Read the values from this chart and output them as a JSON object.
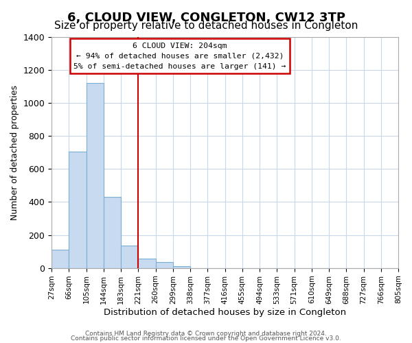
{
  "title": "6, CLOUD VIEW, CONGLETON, CW12 3TP",
  "subtitle": "Size of property relative to detached houses in Congleton",
  "xlabel": "Distribution of detached houses by size in Congleton",
  "ylabel": "Number of detached properties",
  "bar_values": [
    110,
    705,
    1120,
    430,
    135,
    58,
    35,
    10,
    0,
    0,
    0,
    0,
    0,
    0,
    0,
    0,
    0,
    0,
    0,
    0
  ],
  "bin_labels": [
    "27sqm",
    "66sqm",
    "105sqm",
    "144sqm",
    "183sqm",
    "221sqm",
    "260sqm",
    "299sqm",
    "338sqm",
    "377sqm",
    "416sqm",
    "455sqm",
    "494sqm",
    "533sqm",
    "571sqm",
    "610sqm",
    "649sqm",
    "688sqm",
    "727sqm",
    "766sqm",
    "805sqm"
  ],
  "bar_color": "#c8daf0",
  "bar_edge_color": "#7aafd4",
  "vline_pos": 4.5,
  "vline_color": "#cc0000",
  "annotation_box_edge_color": "#cc0000",
  "annotation_lines": [
    "6 CLOUD VIEW: 204sqm",
    "← 94% of detached houses are smaller (2,432)",
    "5% of semi-detached houses are larger (141) →"
  ],
  "ylim": [
    0,
    1400
  ],
  "yticks": [
    0,
    200,
    400,
    600,
    800,
    1000,
    1200,
    1400
  ],
  "footer_line1": "Contains HM Land Registry data © Crown copyright and database right 2024.",
  "footer_line2": "Contains public sector information licensed under the Open Government Licence v3.0.",
  "background_color": "#ffffff",
  "grid_color": "#c8d8e8",
  "annotation_box_facecolor": "#ffffff",
  "title_fontsize": 13,
  "subtitle_fontsize": 11
}
